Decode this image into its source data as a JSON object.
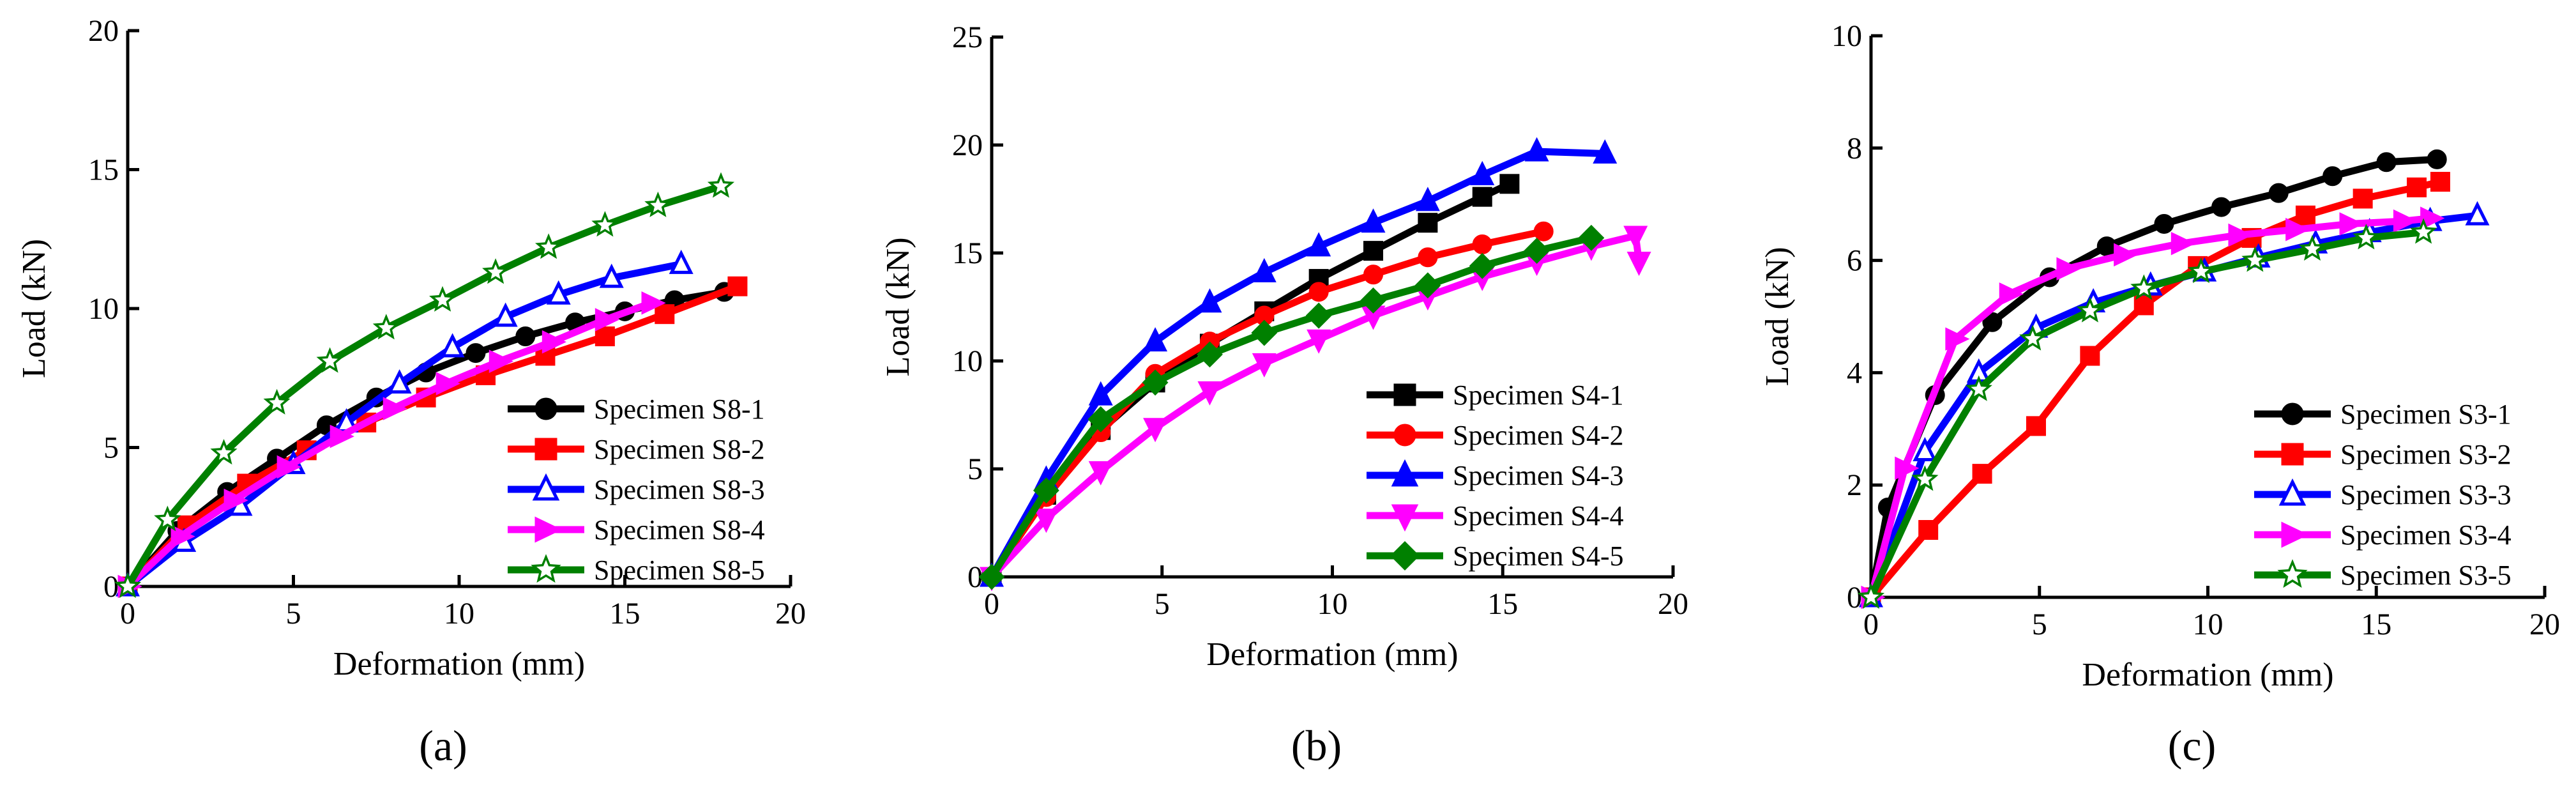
{
  "chart_data": [
    {
      "type": "line",
      "panel_label": "(a)",
      "xlabel": "Deformation (mm)",
      "ylabel": "Load (kN)",
      "xlim": [
        0,
        20
      ],
      "ylim": [
        0,
        20
      ],
      "xticks": [
        0,
        5,
        10,
        15,
        20
      ],
      "yticks": [
        0,
        5,
        10,
        15,
        20
      ],
      "legend_position": "bottom-right",
      "series": [
        {
          "name": "Specimen S8-1",
          "color": "#000000",
          "marker": "circle-filled",
          "x": [
            0,
            1.5,
            3,
            4.5,
            6,
            7.5,
            9,
            10.5,
            12,
            13.5,
            15,
            16.5,
            18
          ],
          "y": [
            0,
            2.0,
            3.4,
            4.6,
            5.8,
            6.8,
            7.7,
            8.4,
            9.0,
            9.5,
            9.9,
            10.3,
            10.6
          ]
        },
        {
          "name": "Specimen S8-2",
          "color": "#ff0000",
          "marker": "square-filled",
          "x": [
            0,
            1.8,
            3.6,
            5.4,
            7.2,
            9,
            10.8,
            12.6,
            14.4,
            16.2,
            18.4
          ],
          "y": [
            0,
            2.2,
            3.7,
            4.9,
            5.9,
            6.8,
            7.6,
            8.3,
            9.0,
            9.8,
            10.8
          ]
        },
        {
          "name": "Specimen S8-3",
          "color": "#0000ff",
          "marker": "triangle-open",
          "x": [
            0,
            1.7,
            3.4,
            5,
            6.6,
            8.2,
            9.8,
            11.4,
            13,
            14.6,
            16.7
          ],
          "y": [
            0,
            1.6,
            2.9,
            4.4,
            5.9,
            7.3,
            8.6,
            9.7,
            10.5,
            11.1,
            11.6
          ]
        },
        {
          "name": "Specimen S8-4",
          "color": "#ff00ff",
          "marker": "triangle-right-filled",
          "x": [
            0,
            1.6,
            3.2,
            4.8,
            6.4,
            8,
            9.6,
            11.2,
            12.8,
            14.4,
            15.8
          ],
          "y": [
            0,
            1.8,
            3.1,
            4.3,
            5.4,
            6.4,
            7.3,
            8.1,
            8.8,
            9.6,
            10.2
          ]
        },
        {
          "name": "Specimen S8-5",
          "color": "#008000",
          "marker": "star-open",
          "x": [
            0,
            1.2,
            2.9,
            4.5,
            6.1,
            7.8,
            9.5,
            11.1,
            12.7,
            14.4,
            16,
            17.9
          ],
          "y": [
            0,
            2.4,
            4.8,
            6.6,
            8.1,
            9.3,
            10.3,
            11.3,
            12.2,
            13.0,
            13.7,
            14.4
          ]
        }
      ]
    },
    {
      "type": "line",
      "panel_label": "(b)",
      "xlabel": "Deformation (mm)",
      "ylabel": "Load (kN)",
      "xlim": [
        0,
        20
      ],
      "ylim": [
        0,
        25
      ],
      "xticks": [
        0,
        5,
        10,
        15,
        20
      ],
      "yticks": [
        0,
        5,
        10,
        15,
        20,
        25
      ],
      "legend_position": "bottom-right",
      "series": [
        {
          "name": "Specimen S4-1",
          "color": "#000000",
          "marker": "square-filled",
          "x": [
            0,
            1.6,
            3.2,
            4.8,
            6.4,
            8,
            9.6,
            11.2,
            12.8,
            14.4,
            15.2
          ],
          "y": [
            0,
            3.8,
            6.8,
            9.0,
            10.8,
            12.3,
            13.8,
            15.1,
            16.4,
            17.6,
            18.2
          ]
        },
        {
          "name": "Specimen S4-2",
          "color": "#ff0000",
          "marker": "circle-filled",
          "x": [
            0,
            1.6,
            3.2,
            4.8,
            6.4,
            8,
            9.6,
            11.2,
            12.8,
            14.4,
            16.2
          ],
          "y": [
            0,
            3.7,
            6.7,
            9.4,
            10.9,
            12.1,
            13.2,
            14.0,
            14.8,
            15.4,
            16.0
          ]
        },
        {
          "name": "Specimen S4-3",
          "color": "#0000ff",
          "marker": "triangle-filled",
          "x": [
            0,
            1.6,
            3.2,
            4.8,
            6.4,
            8,
            9.6,
            11.2,
            12.8,
            14.4,
            16,
            18
          ],
          "y": [
            0,
            4.5,
            8.4,
            10.9,
            12.7,
            14.1,
            15.3,
            16.4,
            17.4,
            18.6,
            19.7,
            19.6
          ]
        },
        {
          "name": "Specimen S4-4",
          "color": "#ff00ff",
          "marker": "triangle-down-filled",
          "x": [
            0,
            1.6,
            3.2,
            4.8,
            6.4,
            8,
            9.6,
            11.2,
            12.8,
            14.4,
            16,
            17.6,
            18.9,
            19.0
          ],
          "y": [
            0,
            2.7,
            4.9,
            6.9,
            8.6,
            9.9,
            11.0,
            12.1,
            13.0,
            13.9,
            14.6,
            15.3,
            15.8,
            14.6
          ]
        },
        {
          "name": "Specimen S4-5",
          "color": "#008000",
          "marker": "diamond-filled",
          "x": [
            0,
            1.6,
            3.2,
            4.8,
            6.4,
            8,
            9.6,
            11.2,
            12.8,
            14.4,
            16,
            17.6
          ],
          "y": [
            0,
            4.0,
            7.3,
            9.0,
            10.3,
            11.3,
            12.1,
            12.8,
            13.5,
            14.4,
            15.1,
            15.7
          ]
        }
      ]
    },
    {
      "type": "line",
      "panel_label": "(c)",
      "xlabel": "Deformation (mm)",
      "ylabel": "Load (kN)",
      "xlim": [
        0,
        20
      ],
      "ylim": [
        0,
        10
      ],
      "xticks": [
        0,
        5,
        10,
        15,
        20
      ],
      "yticks": [
        0,
        2,
        4,
        6,
        8,
        10
      ],
      "legend_position": "bottom-right",
      "series": [
        {
          "name": "Specimen S3-1",
          "color": "#000000",
          "marker": "circle-filled",
          "x": [
            0,
            0.5,
            1.9,
            3.6,
            5.3,
            7.0,
            8.7,
            10.4,
            12.1,
            13.7,
            15.3,
            16.8
          ],
          "y": [
            0,
            1.6,
            3.6,
            4.9,
            5.7,
            6.25,
            6.65,
            6.95,
            7.2,
            7.5,
            7.75,
            7.8
          ]
        },
        {
          "name": "Specimen S3-2",
          "color": "#ff0000",
          "marker": "square-filled",
          "x": [
            0,
            1.7,
            3.3,
            4.9,
            6.5,
            8.1,
            9.7,
            11.3,
            12.9,
            14.6,
            16.2,
            16.9
          ],
          "y": [
            0,
            1.2,
            2.2,
            3.05,
            4.3,
            5.2,
            5.9,
            6.4,
            6.8,
            7.1,
            7.3,
            7.4
          ]
        },
        {
          "name": "Specimen S3-3",
          "color": "#0000ff",
          "marker": "triangle-open",
          "x": [
            0,
            1.6,
            3.2,
            4.9,
            6.6,
            8.3,
            9.9,
            11.5,
            13.2,
            14.8,
            16.6,
            18
          ],
          "y": [
            0,
            2.6,
            4.0,
            4.8,
            5.25,
            5.55,
            5.8,
            6.05,
            6.3,
            6.5,
            6.7,
            6.8
          ]
        },
        {
          "name": "Specimen S3-4",
          "color": "#ff00ff",
          "marker": "triangle-right-filled",
          "x": [
            0,
            1,
            2.5,
            4.1,
            5.8,
            7.5,
            9.2,
            10.9,
            12.6,
            14.2,
            15.8,
            16.6
          ],
          "y": [
            0,
            2.3,
            4.6,
            5.4,
            5.85,
            6.1,
            6.3,
            6.45,
            6.55,
            6.65,
            6.7,
            6.75
          ]
        },
        {
          "name": "Specimen S3-5",
          "color": "#008000",
          "marker": "star-open",
          "x": [
            0,
            1.6,
            3.2,
            4.8,
            6.5,
            8.1,
            9.8,
            11.4,
            13.1,
            14.7,
            16.4
          ],
          "y": [
            0,
            2.1,
            3.7,
            4.6,
            5.1,
            5.5,
            5.8,
            6.0,
            6.2,
            6.4,
            6.5
          ]
        }
      ]
    }
  ]
}
